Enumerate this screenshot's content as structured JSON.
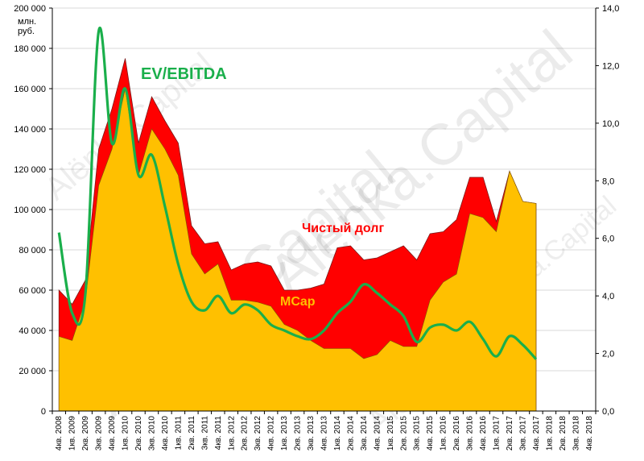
{
  "chart_data": {
    "type": "area",
    "x": [
      "4кв. 2008",
      "1кв. 2009",
      "2кв. 2009",
      "3кв. 2009",
      "4кв. 2009",
      "1кв. 2010",
      "2кв. 2010",
      "3кв. 2010",
      "4кв. 2010",
      "1кв. 2011",
      "2кв. 2011",
      "3кв. 2011",
      "4кв. 2011",
      "1кв. 2012",
      "2кв. 2012",
      "3кв. 2012",
      "4кв. 2012",
      "1кв. 2013",
      "2кв. 2013",
      "3кв. 2013",
      "4кв. 2013",
      "1кв. 2014",
      "2кв. 2014",
      "3кв. 2014",
      "4кв. 2014",
      "1кв. 2015",
      "2кв. 2015",
      "3кв. 2015",
      "4кв. 2015",
      "1кв. 2016",
      "2кв. 2016",
      "3кв. 2016",
      "4кв. 2016",
      "1кв. 2017",
      "2кв. 2017",
      "3кв. 2017",
      "4кв. 2017",
      "1кв. 2018",
      "2кв. 2018",
      "3кв. 2018",
      "4кв. 2018"
    ],
    "y_left": {
      "unit": "млн. руб.",
      "min": 0,
      "max": 200000,
      "step": 20000,
      "tick_labels": [
        "0",
        "20 000",
        "40 000",
        "60 000",
        "80 000",
        "100 000",
        "120 000",
        "140 000",
        "160 000",
        "180 000",
        "200 000"
      ]
    },
    "y_right": {
      "min": 0,
      "max": 14,
      "step": 2,
      "tick_labels": [
        "0,0",
        "2,0",
        "4,0",
        "6,0",
        "8,0",
        "10,0",
        "12,0",
        "14,0"
      ]
    },
    "series": [
      {
        "name": "MCap",
        "color": "#FFC000",
        "values": [
          37000,
          35000,
          55000,
          112000,
          130000,
          160000,
          117000,
          140000,
          130000,
          117000,
          78000,
          68000,
          73000,
          55000,
          55000,
          54000,
          52000,
          43000,
          40000,
          35000,
          31000,
          31000,
          31000,
          26000,
          28000,
          35000,
          32000,
          32000,
          55000,
          64000,
          68000,
          98000,
          96000,
          89000,
          119000,
          104000,
          103000,
          null,
          null,
          null,
          null
        ]
      },
      {
        "name": "Чистый долг",
        "color": "#FF0000",
        "values": [
          23000,
          18000,
          10000,
          18000,
          20000,
          15000,
          16000,
          16000,
          14000,
          16000,
          14000,
          15000,
          11000,
          15000,
          18000,
          20000,
          20000,
          17000,
          20000,
          26000,
          32000,
          50000,
          51000,
          49000,
          48000,
          44000,
          50000,
          43000,
          33000,
          25000,
          27000,
          18000,
          20000,
          5000,
          0,
          0,
          0,
          null,
          null,
          null,
          null
        ]
      },
      {
        "name": "EV/EBITDA",
        "color": "#1AAF4B",
        "values": [
          6.2,
          3.4,
          4.1,
          13.2,
          9.3,
          11.2,
          8.2,
          8.9,
          7.1,
          5.1,
          3.8,
          3.5,
          4.0,
          3.4,
          3.7,
          3.5,
          3.0,
          2.8,
          2.6,
          2.5,
          2.8,
          3.4,
          3.8,
          4.4,
          4.1,
          3.7,
          3.3,
          2.4,
          2.9,
          3.0,
          2.8,
          3.1,
          2.5,
          1.9,
          2.6,
          2.3,
          1.8,
          null,
          null,
          null,
          null
        ]
      }
    ],
    "annotations": {
      "ev_label": "EV/EBITDA",
      "debt_label": "Чистый долг",
      "mcap_label": "MCap"
    },
    "grid": true,
    "watermark": "Alёnka.Capital"
  }
}
